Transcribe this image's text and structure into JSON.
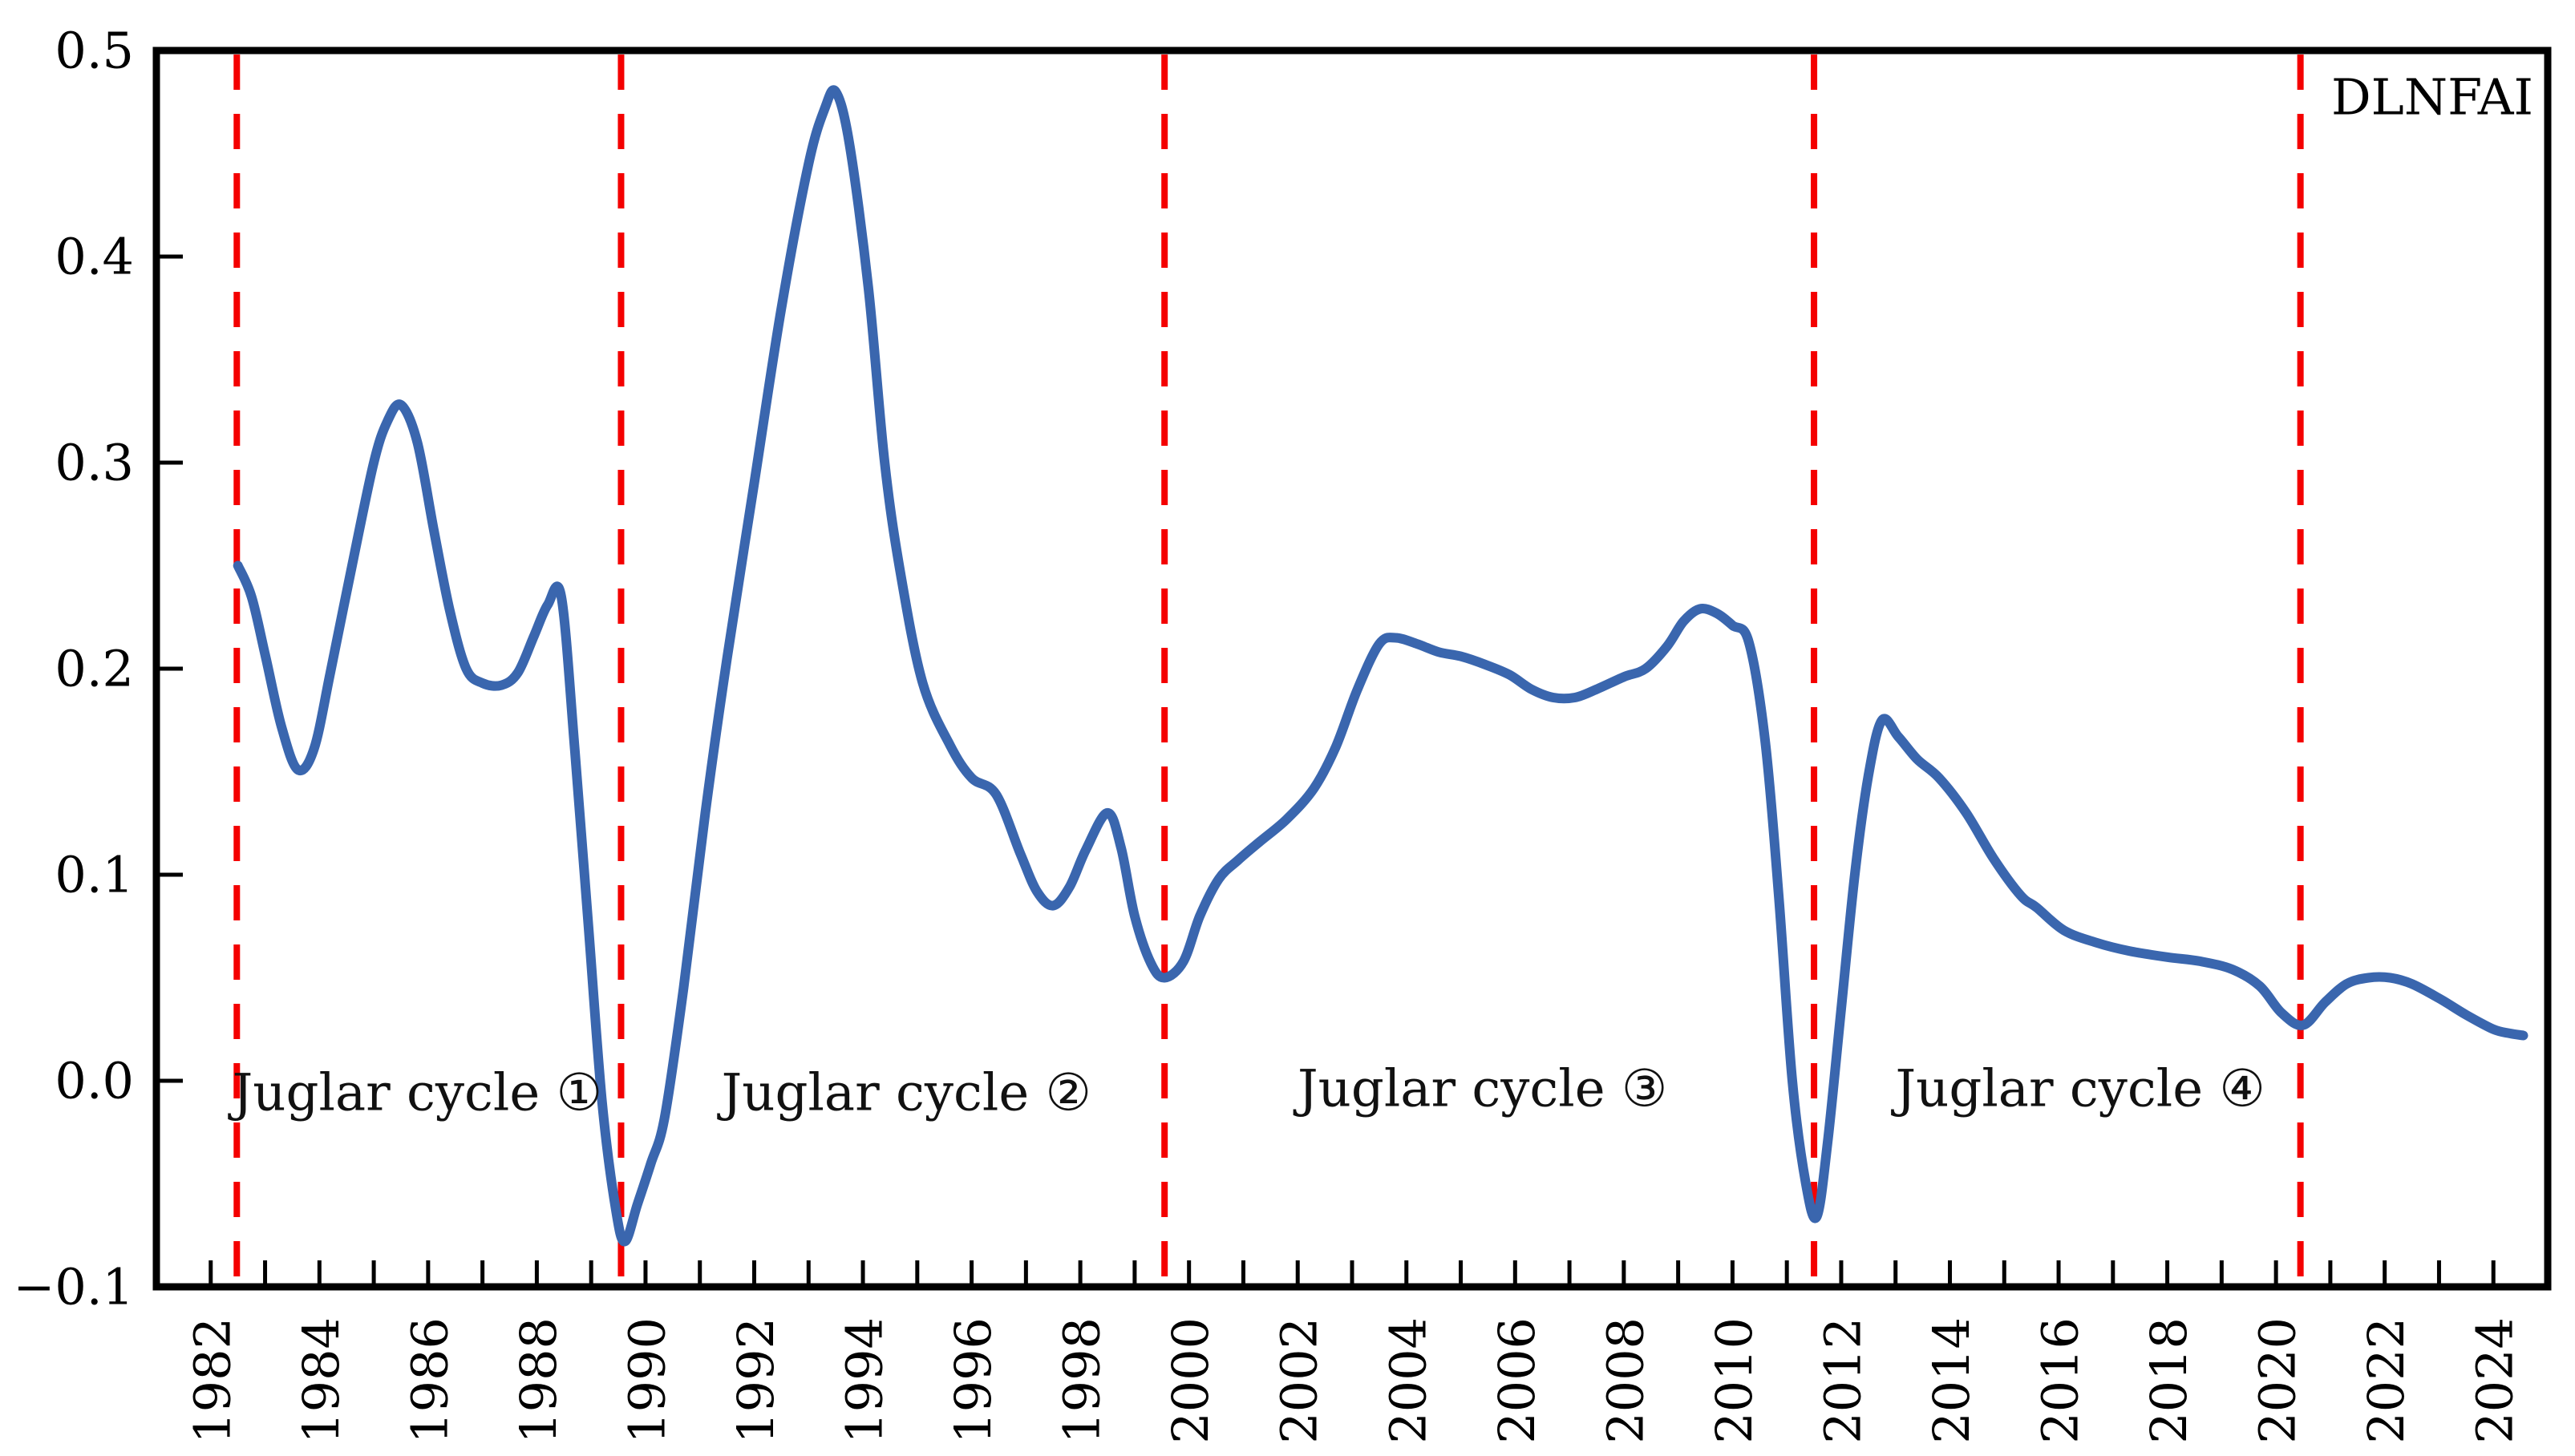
{
  "page": {
    "background": "#ffffff"
  },
  "chart_data": {
    "type": "line",
    "title": "",
    "xlabel": "",
    "ylabel": "",
    "grid": false,
    "x_domain": [
      1981,
      2025
    ],
    "y_domain": [
      -0.1,
      0.5
    ],
    "x_ticks": [
      1982,
      1983,
      1984,
      1985,
      1986,
      1987,
      1988,
      1989,
      1990,
      1991,
      1992,
      1993,
      1994,
      1995,
      1996,
      1997,
      1998,
      1999,
      2000,
      2001,
      2002,
      2003,
      2004,
      2005,
      2006,
      2007,
      2008,
      2009,
      2010,
      2011,
      2012,
      2013,
      2014,
      2015,
      2016,
      2017,
      2018,
      2019,
      2020,
      2021,
      2022,
      2023,
      2024
    ],
    "x_labeled_ticks": [
      1982,
      1984,
      1986,
      1988,
      1990,
      1992,
      1994,
      1996,
      1998,
      2000,
      2002,
      2004,
      2006,
      2008,
      2010,
      2012,
      2014,
      2016,
      2018,
      2020,
      2022,
      2024
    ],
    "y_ticks": [
      0.5,
      0.4,
      0.3,
      0.2,
      0.1,
      0.0,
      -0.1
    ],
    "y_tick_labels": [
      "0.5",
      "0.4",
      "0.3",
      "0.2",
      "0.1",
      "0.0",
      "−0.1"
    ],
    "legend": {
      "label": "DLNFAI",
      "position": "top-right"
    },
    "axis_color": "#000000",
    "boundary_color": "#f40000",
    "cycle_boundaries": [
      1982.48,
      1989.55,
      1999.55,
      2011.5,
      2020.45
    ],
    "annotations": [
      {
        "label": "Juglar cycle ①",
        "x": 1985.8,
        "y": -0.006
      },
      {
        "label": "Juglar cycle ②",
        "x": 1994.8,
        "y": -0.006
      },
      {
        "label": "Juglar cycle ③",
        "x": 2005.4,
        "y": -0.004
      },
      {
        "label": "Juglar cycle ④",
        "x": 2016.4,
        "y": -0.004
      }
    ],
    "series": [
      {
        "name": "DLNFAI",
        "color": "#3a66ae",
        "points": [
          [
            1982.5,
            0.25
          ],
          [
            1982.75,
            0.235
          ],
          [
            1983.0,
            0.207
          ],
          [
            1983.3,
            0.172
          ],
          [
            1983.6,
            0.151
          ],
          [
            1983.9,
            0.161
          ],
          [
            1984.2,
            0.198
          ],
          [
            1984.6,
            0.25
          ],
          [
            1985.0,
            0.3
          ],
          [
            1985.25,
            0.32
          ],
          [
            1985.5,
            0.328
          ],
          [
            1985.8,
            0.31
          ],
          [
            1986.1,
            0.268
          ],
          [
            1986.4,
            0.228
          ],
          [
            1986.7,
            0.2
          ],
          [
            1987.0,
            0.193
          ],
          [
            1987.35,
            0.192
          ],
          [
            1987.65,
            0.198
          ],
          [
            1987.95,
            0.216
          ],
          [
            1988.2,
            0.231
          ],
          [
            1988.45,
            0.235
          ],
          [
            1988.7,
            0.16
          ],
          [
            1988.95,
            0.075
          ],
          [
            1989.2,
            -0.01
          ],
          [
            1989.45,
            -0.062
          ],
          [
            1989.62,
            -0.078
          ],
          [
            1989.85,
            -0.06
          ],
          [
            1990.1,
            -0.04
          ],
          [
            1990.35,
            -0.018
          ],
          [
            1990.7,
            0.045
          ],
          [
            1991.1,
            0.13
          ],
          [
            1991.5,
            0.205
          ],
          [
            1992.0,
            0.29
          ],
          [
            1992.5,
            0.375
          ],
          [
            1993.0,
            0.445
          ],
          [
            1993.3,
            0.472
          ],
          [
            1993.5,
            0.48
          ],
          [
            1993.75,
            0.455
          ],
          [
            1994.1,
            0.385
          ],
          [
            1994.4,
            0.3
          ],
          [
            1994.7,
            0.245
          ],
          [
            1995.1,
            0.193
          ],
          [
            1995.6,
            0.163
          ],
          [
            1996.0,
            0.147
          ],
          [
            1996.45,
            0.139
          ],
          [
            1996.9,
            0.11
          ],
          [
            1997.2,
            0.092
          ],
          [
            1997.5,
            0.085
          ],
          [
            1997.8,
            0.094
          ],
          [
            1998.1,
            0.112
          ],
          [
            1998.5,
            0.13
          ],
          [
            1998.75,
            0.113
          ],
          [
            1999.0,
            0.08
          ],
          [
            1999.3,
            0.057
          ],
          [
            1999.55,
            0.05
          ],
          [
            1999.9,
            0.058
          ],
          [
            2000.2,
            0.08
          ],
          [
            2000.55,
            0.098
          ],
          [
            2000.9,
            0.107
          ],
          [
            2001.3,
            0.116
          ],
          [
            2001.8,
            0.127
          ],
          [
            2002.3,
            0.142
          ],
          [
            2002.7,
            0.162
          ],
          [
            2003.1,
            0.19
          ],
          [
            2003.5,
            0.212
          ],
          [
            2003.8,
            0.215
          ],
          [
            2004.2,
            0.212
          ],
          [
            2004.6,
            0.208
          ],
          [
            2005.0,
            0.206
          ],
          [
            2005.45,
            0.202
          ],
          [
            2005.9,
            0.197
          ],
          [
            2006.3,
            0.19
          ],
          [
            2006.7,
            0.186
          ],
          [
            2007.1,
            0.186
          ],
          [
            2007.5,
            0.19
          ],
          [
            2008.0,
            0.196
          ],
          [
            2008.4,
            0.2
          ],
          [
            2008.8,
            0.211
          ],
          [
            2009.1,
            0.223
          ],
          [
            2009.4,
            0.229
          ],
          [
            2009.7,
            0.227
          ],
          [
            2010.0,
            0.221
          ],
          [
            2010.3,
            0.213
          ],
          [
            2010.6,
            0.165
          ],
          [
            2010.85,
            0.09
          ],
          [
            2011.1,
            0.0
          ],
          [
            2011.35,
            -0.05
          ],
          [
            2011.55,
            -0.066
          ],
          [
            2011.75,
            -0.03
          ],
          [
            2012.0,
            0.035
          ],
          [
            2012.25,
            0.1
          ],
          [
            2012.5,
            0.148
          ],
          [
            2012.75,
            0.175
          ],
          [
            2013.05,
            0.167
          ],
          [
            2013.4,
            0.156
          ],
          [
            2013.8,
            0.147
          ],
          [
            2014.3,
            0.13
          ],
          [
            2014.8,
            0.108
          ],
          [
            2015.3,
            0.09
          ],
          [
            2015.6,
            0.084
          ],
          [
            2016.1,
            0.073
          ],
          [
            2016.7,
            0.067
          ],
          [
            2017.3,
            0.063
          ],
          [
            2018.0,
            0.06
          ],
          [
            2018.6,
            0.058
          ],
          [
            2019.2,
            0.054
          ],
          [
            2019.7,
            0.046
          ],
          [
            2020.1,
            0.033
          ],
          [
            2020.5,
            0.027
          ],
          [
            2020.9,
            0.038
          ],
          [
            2021.3,
            0.047
          ],
          [
            2021.7,
            0.05
          ],
          [
            2022.1,
            0.05
          ],
          [
            2022.5,
            0.047
          ],
          [
            2023.0,
            0.04
          ],
          [
            2023.5,
            0.032
          ],
          [
            2024.0,
            0.025
          ],
          [
            2024.3,
            0.023
          ],
          [
            2024.55,
            0.022
          ]
        ]
      }
    ]
  }
}
